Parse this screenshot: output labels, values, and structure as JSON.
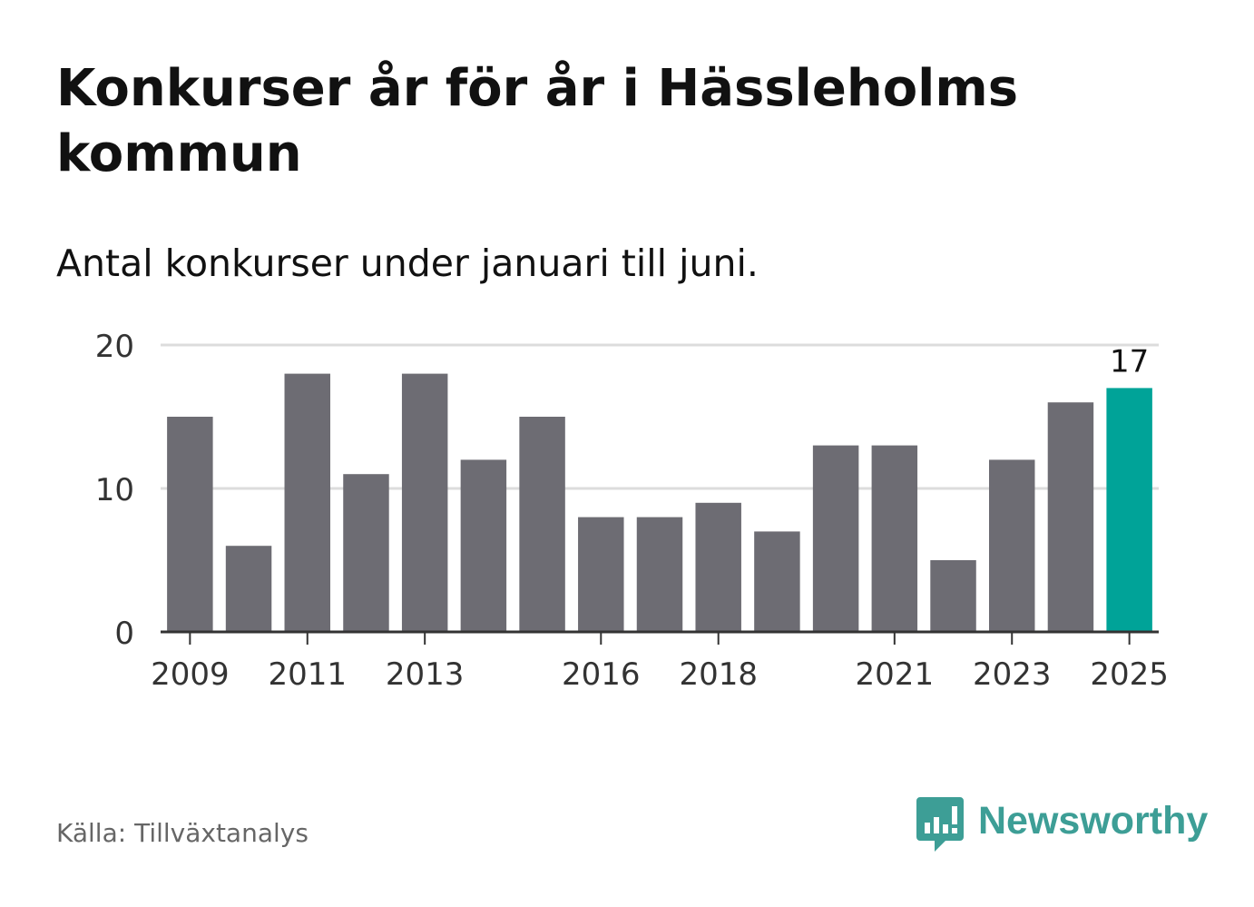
{
  "chart_data": {
    "type": "bar",
    "title": "Konkurser år för år i Hässleholms kommun",
    "subtitle": "Antal konkurser under januari till juni.",
    "categories": [
      "2009",
      "2010",
      "2011",
      "2012",
      "2013",
      "2014",
      "2015",
      "2016",
      "2017",
      "2018",
      "2019",
      "2020",
      "2021",
      "2022",
      "2023",
      "2024",
      "2025"
    ],
    "values": [
      15,
      6,
      18,
      11,
      18,
      12,
      15,
      8,
      8,
      9,
      7,
      13,
      13,
      5,
      12,
      16,
      17
    ],
    "x_tick_labels": [
      "2009",
      "2011",
      "2013",
      "2016",
      "2018",
      "2021",
      "2023",
      "2025"
    ],
    "y_ticks": [
      0,
      10,
      20
    ],
    "ylim": [
      0,
      20
    ],
    "xlabel": "",
    "ylabel": "",
    "grid": true,
    "highlight": {
      "category": "2025",
      "label": "17"
    },
    "colors": {
      "bar": "#6d6c73",
      "highlight": "#00a398",
      "grid": "#dcdcdc",
      "axis": "#333333"
    }
  },
  "footer": {
    "source": "Källa: Tillväxtanalys",
    "brand": "Newsworthy",
    "brand_icon": "bar-chart-speech-bubble-icon",
    "brand_color": "#3d9e96"
  }
}
